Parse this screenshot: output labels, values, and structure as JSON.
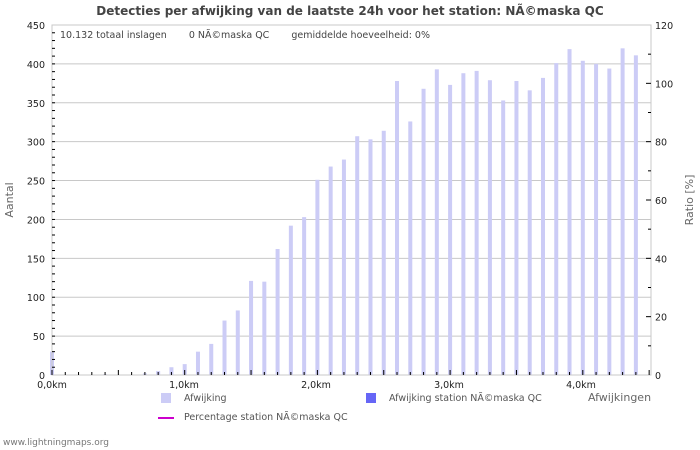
{
  "title": "Detecties per afwijking van de laatste 24h voor het station: NÃ©maska QC",
  "stats": {
    "total": "10.132 totaal inslagen",
    "station": "0 NÃ©maska QC",
    "average": "gemiddelde hoeveelheid: 0%"
  },
  "axes": {
    "left_title": "Aantal",
    "right_title": "Ratio [%]",
    "x_title": "Afwijkingen",
    "left_ticks": [
      "0",
      "50",
      "100",
      "150",
      "200",
      "250",
      "300",
      "350",
      "400",
      "450"
    ],
    "right_ticks": [
      "0",
      "20",
      "40",
      "60",
      "80",
      "100",
      "120"
    ],
    "x_ticks": [
      "0,0km",
      "1,0km",
      "2,0km",
      "3,0km",
      "4,0km"
    ]
  },
  "legend": {
    "afwijking": "Afwijking",
    "afwijking_station": "Afwijking station NÃ©maska QC",
    "percentage_station": "Percentage station NÃ©maska QC"
  },
  "colors": {
    "bar": "#ccccf6",
    "bar_station": "#6666f6",
    "percentage_line": "#cc00cc",
    "grid": "#c8c8c8"
  },
  "footer": "www.lightningmaps.org",
  "chart_data": {
    "type": "bar",
    "title": "Detecties per afwijking van de laatste 24h voor het station: NÃ©maska QC",
    "xlabel": "Afwijkingen",
    "ylabel": "Aantal",
    "y2label": "Ratio [%]",
    "ylim": [
      0,
      450
    ],
    "y2lim": [
      0,
      120
    ],
    "grid": true,
    "legend_position": "bottom",
    "categories": [
      "0,0km",
      "0,1km",
      "0,2km",
      "0,3km",
      "0,4km",
      "0,5km",
      "0,6km",
      "0,7km",
      "0,8km",
      "0,9km",
      "1,0km",
      "1,1km",
      "1,2km",
      "1,3km",
      "1,4km",
      "1,5km",
      "1,6km",
      "1,7km",
      "1,8km",
      "1,9km",
      "2,0km",
      "2,1km",
      "2,2km",
      "2,3km",
      "2,4km",
      "2,5km",
      "2,6km",
      "2,7km",
      "2,8km",
      "2,9km",
      "3,0km",
      "3,1km",
      "3,2km",
      "3,3km",
      "3,4km",
      "3,5km",
      "3,6km",
      "3,7km",
      "3,8km",
      "3,9km",
      "4,0km",
      "4,1km",
      "4,2km",
      "4,3km",
      "4,4km"
    ],
    "series": [
      {
        "name": "Afwijking",
        "values": [
          30,
          0,
          0,
          0,
          1,
          0,
          0,
          2,
          5,
          10,
          14,
          30,
          40,
          70,
          83,
          121,
          120,
          162,
          192,
          203,
          251,
          268,
          277,
          307,
          303,
          314,
          378,
          326,
          368,
          393,
          373,
          388,
          391,
          379,
          353,
          378,
          366,
          382,
          401,
          419,
          404,
          400,
          394,
          420,
          411
        ]
      },
      {
        "name": "Afwijking station NÃ©maska QC",
        "values": [
          0,
          0,
          0,
          0,
          0,
          0,
          0,
          0,
          0,
          0,
          0,
          0,
          0,
          0,
          0,
          0,
          0,
          0,
          0,
          0,
          0,
          0,
          0,
          0,
          0,
          0,
          0,
          0,
          0,
          0,
          0,
          0,
          0,
          0,
          0,
          0,
          0,
          0,
          0,
          0,
          0,
          0,
          0,
          0,
          0
        ]
      },
      {
        "name": "Percentage station NÃ©maska QC",
        "axis": "right",
        "values": [
          0,
          0,
          0,
          0,
          0,
          0,
          0,
          0,
          0,
          0,
          0,
          0,
          0,
          0,
          0,
          0,
          0,
          0,
          0,
          0,
          0,
          0,
          0,
          0,
          0,
          0,
          0,
          0,
          0,
          0,
          0,
          0,
          0,
          0,
          0,
          0,
          0,
          0,
          0,
          0,
          0,
          0,
          0,
          0,
          0
        ]
      }
    ]
  }
}
